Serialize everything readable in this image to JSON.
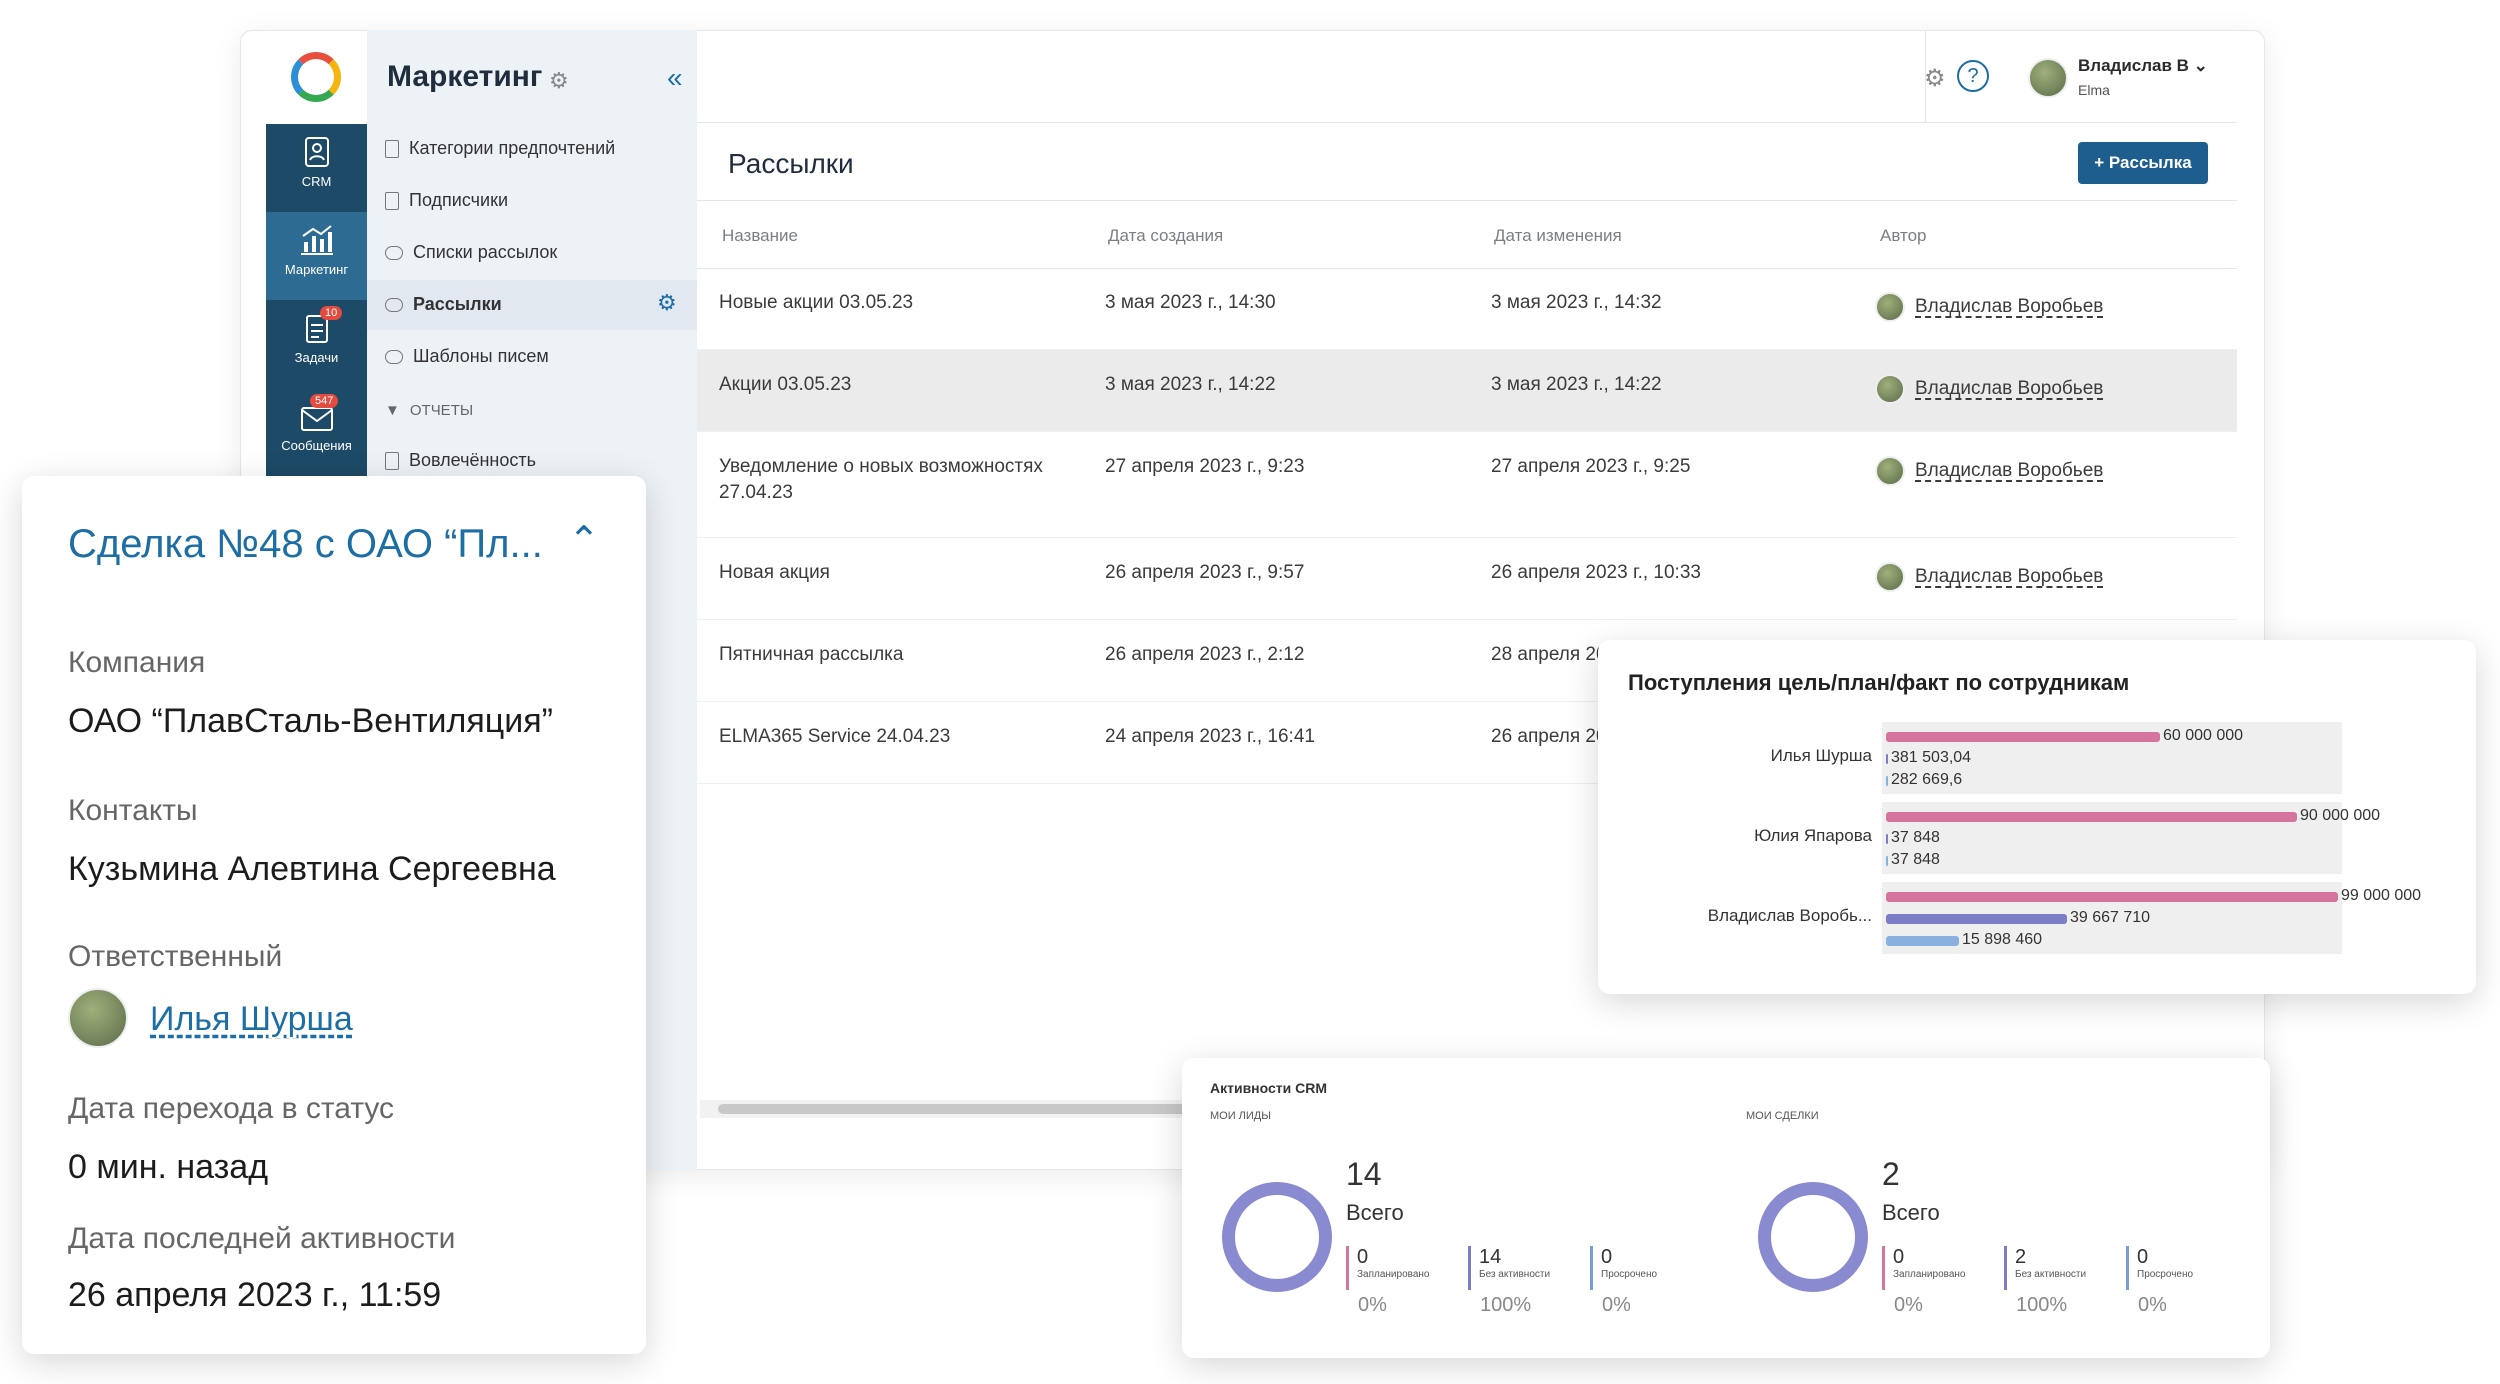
{
  "app": {
    "section_title": "Маркетинг",
    "user_name": "Владислав В",
    "user_org": "Elma"
  },
  "rail": [
    {
      "label": "CRM",
      "icon": "crm-icon"
    },
    {
      "label": "Маркетинг",
      "icon": "chart-icon"
    },
    {
      "label": "Задачи",
      "icon": "tasks-icon",
      "badge": "10"
    },
    {
      "label": "Сообщения",
      "icon": "mail-icon",
      "badge": "547"
    }
  ],
  "sidebar": {
    "items": [
      "Категории предпочтений",
      "Подписчики",
      "Списки рассылок",
      "Рассылки",
      "Шаблоны писем"
    ],
    "group": "ОТЧЕТЫ",
    "group_items": [
      "Вовлечённость"
    ]
  },
  "page": {
    "title": "Рассылки",
    "add_button": "+ Рассылка"
  },
  "table": {
    "headers": [
      "Название",
      "Дата создания",
      "Дата изменения",
      "Автор"
    ],
    "rows": [
      {
        "name": "Новые акции 03.05.23",
        "created": "3 мая 2023 г., 14:30",
        "modified": "3 мая 2023 г., 14:32",
        "author": "Владислав Воробьев"
      },
      {
        "name": "Акции 03.05.23",
        "created": "3 мая 2023 г., 14:22",
        "modified": "3 мая 2023 г., 14:22",
        "author": "Владислав Воробьев"
      },
      {
        "name": "Уведомление о новых возможностях",
        "name2": "27.04.23",
        "created": "27 апреля 2023 г., 9:23",
        "modified": "27 апреля 2023 г., 9:25",
        "author": "Владислав Воробьев"
      },
      {
        "name": "Новая акция",
        "created": "26 апреля 2023 г., 9:57",
        "modified": "26 апреля 2023 г., 10:33",
        "author": "Владислав Воробьев"
      },
      {
        "name": "Пятничная рассылка",
        "created": "26 апреля 2023 г., 2:12",
        "modified": "28 апреля 20",
        "author": ""
      },
      {
        "name": "ELMA365 Service 24.04.23",
        "created": "24 апреля 2023 г., 16:41",
        "modified": "26 апреля 20",
        "author": ""
      }
    ]
  },
  "deal": {
    "title": "Сделка №48 с ОАО “Пл...",
    "company_label": "Компания",
    "company": "ОАО “ПлавСталь-Вентиляция”",
    "contacts_label": "Контакты",
    "contacts": "Кузьмина Алевтина Сергеевна",
    "owner_label": "Ответственный",
    "owner": "Илья Шурша",
    "status_label": "Дата перехода в статус",
    "status": "0 мин. назад",
    "activity_label": "Дата последней активности",
    "activity": "26 апреля 2023 г., 11:59"
  },
  "chart_data": {
    "type": "bar",
    "title": "Поступления цель/план/факт по сотрудникам",
    "categories": [
      "Илья Шурша",
      "Юлия Япарова",
      "Владислав Воробь..."
    ],
    "series": [
      {
        "values": [
          60000000,
          90000000,
          99000000
        ],
        "labels": [
          "60 000 000",
          "90 000 000",
          "99 000 000"
        ],
        "color": "#d4749f"
      },
      {
        "values": [
          381503.04,
          37848,
          39667710
        ],
        "labels": [
          "381 503,04",
          "37 848",
          "39 667 710"
        ],
        "color": "#7c7cc8"
      },
      {
        "values": [
          282669.6,
          37848,
          15898460
        ],
        "labels": [
          "282 669,6",
          "37 848",
          "15 898 460"
        ],
        "color": "#8ab0e0"
      }
    ],
    "xlim": [
      0,
      99000000
    ]
  },
  "crm": {
    "title": "Активности CRM",
    "blocks": [
      {
        "caption": "МОИ ЛИДЫ",
        "total": "14",
        "total_label": "Всего",
        "stats": [
          {
            "n": "0",
            "label": "Запланировано",
            "pct": "0%",
            "color": "#d4749f"
          },
          {
            "n": "14",
            "label": "Без активности",
            "pct": "100%",
            "color": "#7c7cc8"
          },
          {
            "n": "0",
            "label": "Просрочено",
            "pct": "0%",
            "color": "#7c9cd8"
          }
        ]
      },
      {
        "caption": "МОИ СДЕЛКИ",
        "total": "2",
        "total_label": "Всего",
        "stats": [
          {
            "n": "0",
            "label": "Запланировано",
            "pct": "0%",
            "color": "#d4749f"
          },
          {
            "n": "2",
            "label": "Без активности",
            "pct": "100%",
            "color": "#7c7cc8"
          },
          {
            "n": "0",
            "label": "Просрочено",
            "pct": "0%",
            "color": "#7c9cd8"
          }
        ]
      }
    ]
  }
}
